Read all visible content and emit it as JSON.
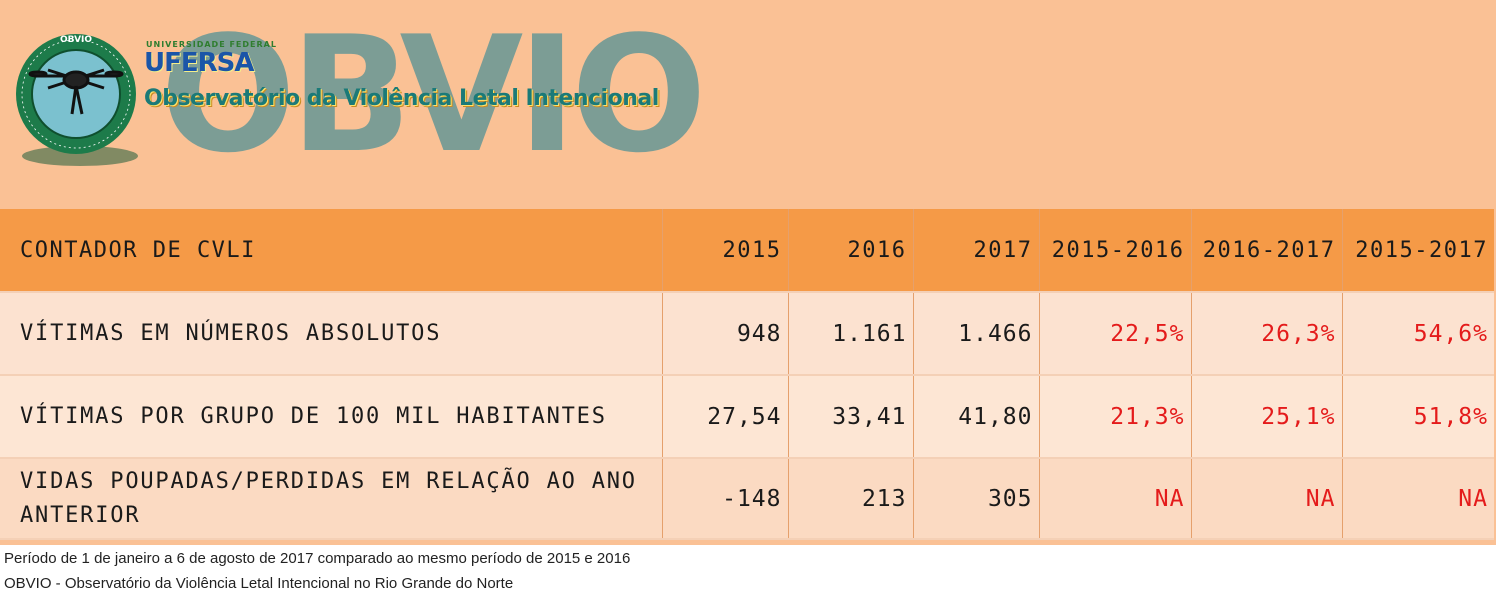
{
  "brand": {
    "logo_big": "OBVIO",
    "ufersa": "UFERSA",
    "ufersa_small": "UNIVERSIDADE FEDERAL",
    "name": "Observatório da Violência Letal Intencional",
    "seal_text_top": "OBVIO",
    "seal_text_ring": "OBSERVATÓRIO DA VIOLÊNCIA LETAL INTENCIONAL"
  },
  "colors": {
    "banner": "#fac195",
    "header_row": "#f59a47",
    "highlight_red": "#e41b1b",
    "logo_teal": "#6f9a96"
  },
  "chart_data": {
    "type": "table",
    "columns": [
      "CONTADOR DE CVLI",
      "2015",
      "2016",
      "2017",
      "2015-2016",
      "2016-2017",
      "2015-2017"
    ],
    "rows": [
      {
        "label": "VÍTIMAS EM NÚMEROS ABSOLUTOS",
        "values": [
          "948",
          "1.161",
          "1.466",
          "22,5%",
          "26,3%",
          "54,6%"
        ]
      },
      {
        "label": "VÍTIMAS POR GRUPO DE 100 MIL HABITANTES",
        "values": [
          "27,54",
          "33,41",
          "41,80",
          "21,3%",
          "25,1%",
          "51,8%"
        ]
      },
      {
        "label": "VIDAS POUPADAS/PERDIDAS EM RELAÇÃO AO ANO ANTERIOR",
        "values": [
          "-148",
          "213",
          "305",
          "NA",
          "NA",
          "NA"
        ]
      }
    ]
  },
  "notes": [
    "Período de 1 de janeiro a 6 de agosto de 2017 comparado ao mesmo período de 2015 e 2016",
    "OBVIO - Observatório da Violência Letal Intencional no Rio Grande do Norte"
  ]
}
